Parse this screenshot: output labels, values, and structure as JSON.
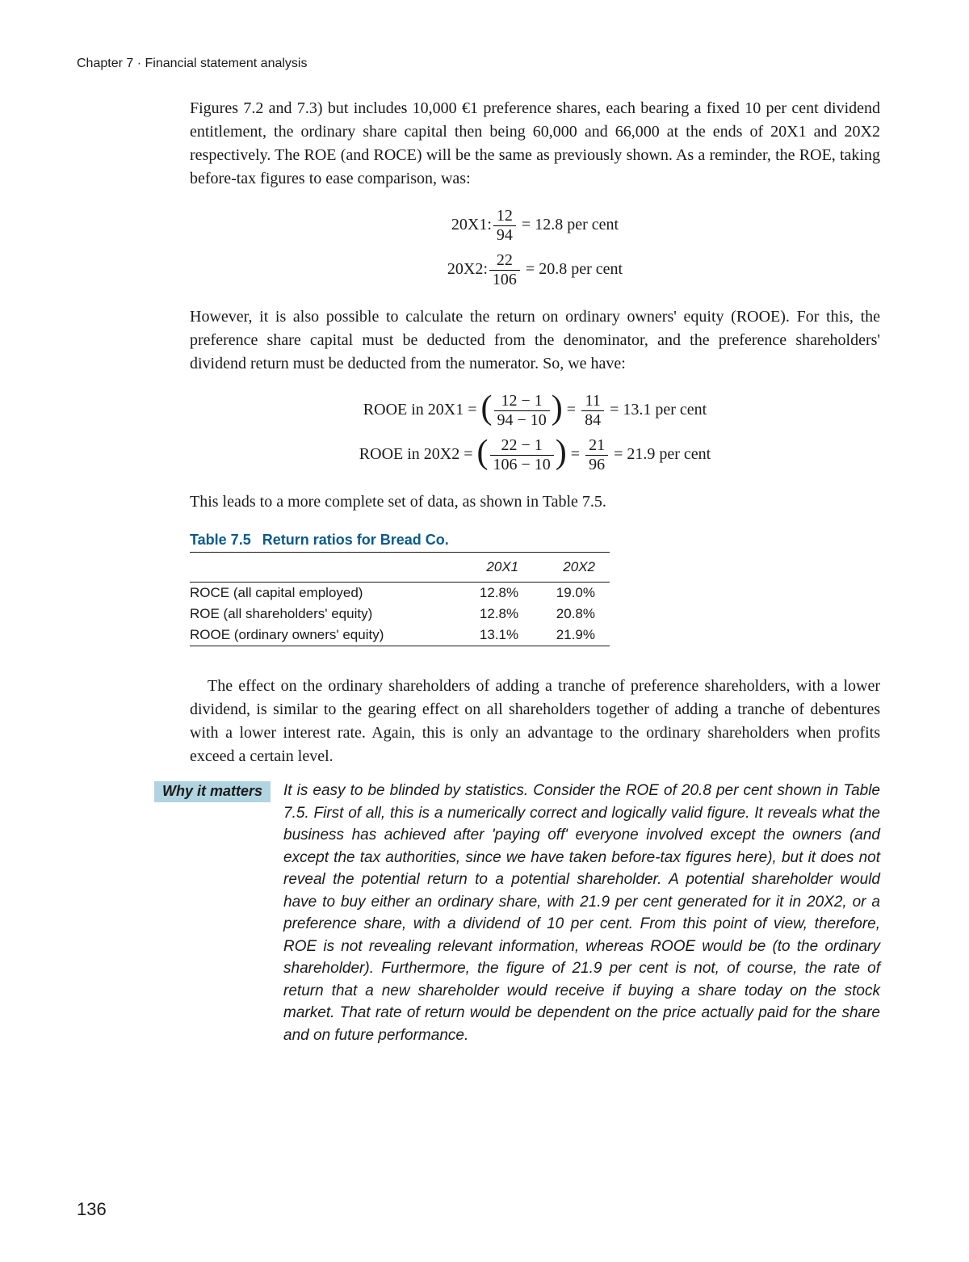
{
  "header": {
    "chapter": "Chapter 7 · Financial statement analysis"
  },
  "para1": "Figures 7.2 and 7.3) but includes 10,000 €1 preference shares, each bearing a fixed 10 per cent dividend entitlement, the ordinary share capital then being 60,000 and 66,000 at the ends of 20X1 and 20X2 respectively. The ROE (and ROCE) will be the same as previously shown. As a reminder, the ROE, taking before-tax figures to ease comparison, was:",
  "eq1": {
    "label1": "20X1:",
    "top1": "12",
    "bot1": "94",
    "res1": "= 12.8 per cent",
    "label2": "20X2:",
    "top2": "22",
    "bot2": "106",
    "res2": "= 20.8 per cent"
  },
  "para2": "However, it is also possible to calculate the return on ordinary owners' equity (ROOE). For this, the preference share capital must be deducted from the denominator, and the preference shareholders' dividend return must be deducted from the numerator. So, we have:",
  "eq2": {
    "label1": "ROOE in 20X1 = ",
    "t1a": "12 − 1",
    "b1a": "94 − 10",
    "mid1": " = ",
    "t1b": "11",
    "b1b": "84",
    "res1": " = 13.1 per cent",
    "label2": "ROOE in 20X2 = ",
    "t2a": "22 − 1",
    "b2a": "106 − 10",
    "mid2": " = ",
    "t2b": "21",
    "b2b": "96",
    "res2": " = 21.9 per cent"
  },
  "para3": "This leads to a more complete set of data, as shown in Table 7.5.",
  "table": {
    "label": "Table 7.5",
    "title": "Return ratios for Bread Co.",
    "col1": "20X1",
    "col2": "20X2",
    "rows": [
      {
        "name": "ROCE (all capital employed)",
        "v1": "12.8%",
        "v2": "19.0%"
      },
      {
        "name": "ROE (all shareholders' equity)",
        "v1": "12.8%",
        "v2": "20.8%"
      },
      {
        "name": "ROOE (ordinary owners' equity)",
        "v1": "13.1%",
        "v2": "21.9%"
      }
    ]
  },
  "para4": "The effect on the ordinary shareholders of adding a tranche of preference shareholders, with a lower dividend, is similar to the gearing effect on all shareholders together of adding a tranche of debentures with a lower interest rate. Again, this is only an advantage to the ordinary shareholders when profits exceed a certain level.",
  "callout": {
    "label": "Why it matters",
    "text": "It is easy to be blinded by statistics. Consider the ROE of 20.8 per cent shown in Table 7.5. First of all, this is a numerically correct and logically valid figure. It reveals what the business has achieved after 'paying off' everyone involved except the owners (and except the tax authorities, since we have taken before-tax figures here), but it does not reveal the potential return to a potential shareholder. A potential shareholder would have to buy either an ordinary share, with 21.9 per cent generated for it in 20X2, or a preference share, with a dividend of 10 per cent. From this point of view, therefore, ROE is not revealing relevant information, whereas ROOE would be (to the ordinary shareholder). Furthermore, the figure of 21.9 per cent is not, of course, the rate of return that a new shareholder would receive if buying a share today on the stock market. That rate of return would be dependent on the price actually paid for the share and on future performance."
  },
  "pageNumber": "136"
}
